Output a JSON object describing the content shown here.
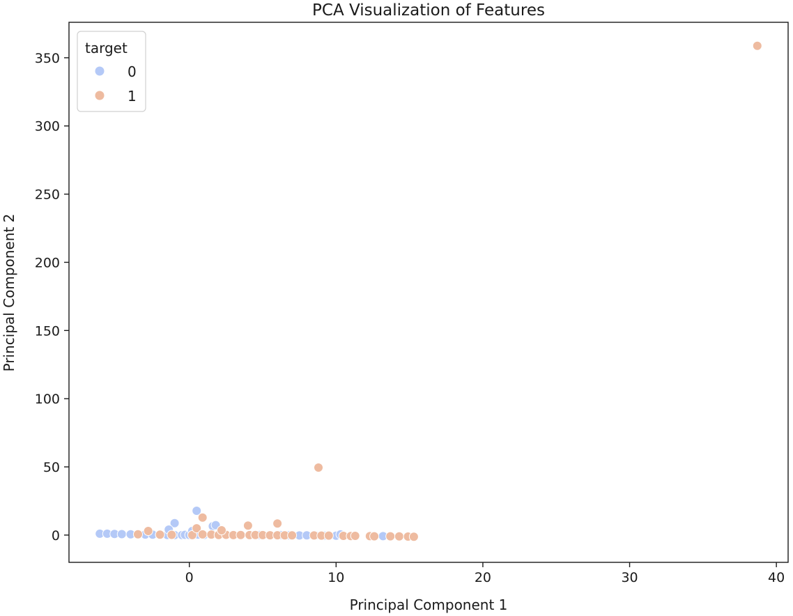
{
  "chart_data": {
    "type": "scatter",
    "title": "PCA Visualization of Features",
    "xlabel": "Principal Component 1",
    "ylabel": "Principal Component 2",
    "xlim": [
      -8.2,
      40.8
    ],
    "ylim": [
      -20,
      376
    ],
    "xticks": [
      0,
      10,
      20,
      30,
      40
    ],
    "yticks": [
      0,
      50,
      100,
      150,
      200,
      250,
      300,
      350
    ],
    "grid": false,
    "legend": {
      "title": "target",
      "placement": "top-left"
    },
    "series": [
      {
        "name": "0",
        "color": "#b4c9f7",
        "points": [
          [
            -6.1,
            1.0
          ],
          [
            -5.6,
            1.0
          ],
          [
            -5.1,
            0.8
          ],
          [
            -4.6,
            0.7
          ],
          [
            -4.0,
            0.6
          ],
          [
            -3.5,
            0.5
          ],
          [
            -3.0,
            0.4
          ],
          [
            -2.5,
            0.3
          ],
          [
            -2.0,
            0.2
          ],
          [
            -1.5,
            0.1
          ],
          [
            -1.0,
            0.0
          ],
          [
            -0.5,
            0.0
          ],
          [
            -0.3,
            0.2
          ],
          [
            0.0,
            0.1
          ],
          [
            0.3,
            0.0
          ],
          [
            0.6,
            0.4
          ],
          [
            1.0,
            0.1
          ],
          [
            1.5,
            0.2
          ],
          [
            2.0,
            0.0
          ],
          [
            2.5,
            0.1
          ],
          [
            3.0,
            -0.1
          ],
          [
            3.5,
            0.2
          ],
          [
            4.2,
            0.0
          ],
          [
            4.8,
            0.1
          ],
          [
            5.5,
            -0.1
          ],
          [
            6.2,
            0.0
          ],
          [
            6.8,
            -0.2
          ],
          [
            7.5,
            -0.3
          ],
          [
            8.0,
            -0.2
          ],
          [
            8.6,
            -0.3
          ],
          [
            9.2,
            -0.4
          ],
          [
            10.0,
            -0.5
          ],
          [
            10.3,
            0.5
          ],
          [
            12.5,
            -0.6
          ],
          [
            13.2,
            -0.8
          ],
          [
            -1.0,
            8.7
          ],
          [
            0.5,
            17.8
          ],
          [
            1.6,
            6.5
          ],
          [
            1.8,
            7.3
          ],
          [
            -1.4,
            4.0
          ],
          [
            0.2,
            3.0
          ]
        ]
      },
      {
        "name": "1",
        "color": "#eebba0",
        "points": [
          [
            -3.5,
            0.6
          ],
          [
            -2.0,
            0.3
          ],
          [
            -1.2,
            0.2
          ],
          [
            0.2,
            0.0
          ],
          [
            0.5,
            5.0
          ],
          [
            0.9,
            0.5
          ],
          [
            0.9,
            12.8
          ],
          [
            1.5,
            0.4
          ],
          [
            2.0,
            0.1
          ],
          [
            2.5,
            0.2
          ],
          [
            3.0,
            0.0
          ],
          [
            3.5,
            0.1
          ],
          [
            4.0,
            7.0
          ],
          [
            4.1,
            0.0
          ],
          [
            4.5,
            0.1
          ],
          [
            5.0,
            0.0
          ],
          [
            5.5,
            -0.1
          ],
          [
            6.0,
            8.5
          ],
          [
            6.0,
            -0.1
          ],
          [
            6.5,
            -0.2
          ],
          [
            7.0,
            -0.2
          ],
          [
            8.5,
            -0.3
          ],
          [
            8.8,
            49.5
          ],
          [
            9.0,
            -0.4
          ],
          [
            9.5,
            -0.4
          ],
          [
            10.5,
            -0.6
          ],
          [
            11.0,
            -0.7
          ],
          [
            11.3,
            -0.6
          ],
          [
            12.3,
            -0.8
          ],
          [
            12.6,
            -0.9
          ],
          [
            13.7,
            -0.9
          ],
          [
            14.3,
            -1.0
          ],
          [
            14.9,
            -1.1
          ],
          [
            15.3,
            -1.2
          ],
          [
            38.7,
            358.8
          ],
          [
            -2.8,
            3.0
          ],
          [
            2.2,
            3.5
          ]
        ]
      }
    ]
  }
}
